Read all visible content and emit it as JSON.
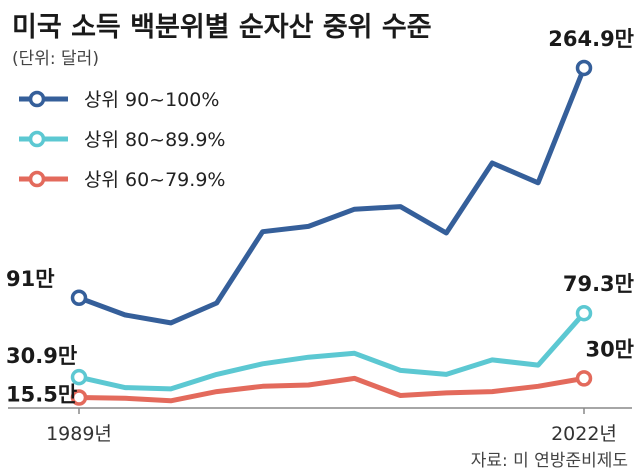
{
  "chart_data": {
    "type": "line",
    "title": "미국 소득 백분위별 순자산 중위 수준",
    "unit": "(단위: 달러)",
    "source": "자료: 미 연방준비제도",
    "x": [
      "1989",
      "1992",
      "1995",
      "1998",
      "2001",
      "2004",
      "2007",
      "2010",
      "2013",
      "2016",
      "2019",
      "2022"
    ],
    "x_tick_labels": [
      "1989년",
      "2022년"
    ],
    "series": [
      {
        "name": "상위 90~100%",
        "color": "#355f9a",
        "values": [
          91,
          78,
          72,
          87,
          141,
          145,
          158,
          160,
          140,
          193,
          178,
          264.9
        ],
        "start_label": "91만",
        "end_label": "264.9만"
      },
      {
        "name": "상위 80~89.9%",
        "color": "#5cc8d2",
        "values": [
          30.9,
          23,
          22,
          33,
          41,
          46,
          49,
          36,
          33,
          44,
          40,
          79.3
        ],
        "start_label": "30.9만",
        "end_label": "79.3만"
      },
      {
        "name": "상위 60~79.9%",
        "color": "#e36a5c",
        "values": [
          15.5,
          15,
          13,
          20,
          24,
          25,
          30,
          17,
          19,
          20,
          24,
          30
        ],
        "start_label": "15.5만",
        "end_label": "30만"
      }
    ],
    "ylim": [
      0,
      280
    ],
    "grid": false,
    "legend": "top-left"
  }
}
